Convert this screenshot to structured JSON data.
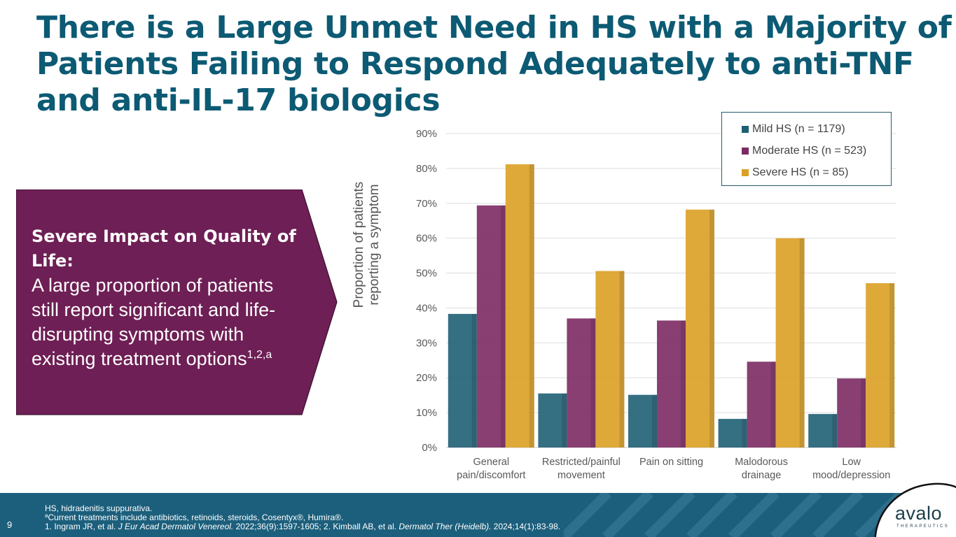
{
  "title": {
    "line1": "There is a Large Unmet Need in HS with a Majority of",
    "line2": "Patients Failing to Respond Adequately to anti-TNF",
    "line3": "and anti-IL-17 biologics"
  },
  "callout": {
    "heading": "Severe Impact on Quality of Life:",
    "body": "A large proportion of patients still report significant and life-disrupting symptoms with existing treatment options",
    "body_superscript": "1,2,a",
    "fill_color": "#6e1f55"
  },
  "chart_data": {
    "type": "bar",
    "ylabel_line1": "Proportion of patients",
    "ylabel_line2": "reporting a symptom",
    "ylim": [
      0,
      90
    ],
    "yticks": [
      0,
      10,
      20,
      30,
      40,
      50,
      60,
      70,
      80,
      90
    ],
    "ytick_labels": [
      "0%",
      "10%",
      "20%",
      "30%",
      "40%",
      "50%",
      "60%",
      "70%",
      "80%",
      "90%"
    ],
    "grid": true,
    "legend_position": "top-right",
    "categories": [
      [
        "General",
        "pain/discomfort"
      ],
      [
        "Restricted/painful",
        "movement"
      ],
      [
        "Pain on sitting"
      ],
      [
        "Malodorous",
        "drainage"
      ],
      [
        "Low",
        "mood/depression"
      ]
    ],
    "series": [
      {
        "name": "Mild HS (n = 1179)",
        "color": "#1f5f74",
        "values": [
          38.3,
          15.5,
          15.1,
          8.2,
          9.6
        ]
      },
      {
        "name": "Moderate HS (n = 523)",
        "color": "#7c2a63",
        "values": [
          69.4,
          37.0,
          36.4,
          24.6,
          19.8
        ]
      },
      {
        "name": "Severe HS (n = 85)",
        "color": "#dba024",
        "values": [
          81.2,
          50.6,
          68.2,
          60.0,
          47.1
        ]
      }
    ]
  },
  "footer": {
    "page_number": "9",
    "line1": "HS, hidradenitis suppurativa.",
    "line2_sup": "a",
    "line2": "Current treatments include antibiotics, retinoids, steroids, Cosentyx®, Humira®.",
    "line3_a": "1. Ingram JR, et al. ",
    "line3_journal1": "J Eur Acad Dermatol Venereol.",
    "line3_b": " 2022;36(9):1597-1605; 2. Kimball AB, et al. ",
    "line3_journal2": "Dermatol Ther (Heidelb).",
    "line3_c": " 2024;14(1):83-98.",
    "background_color": "#1c5f7c"
  },
  "logo": {
    "word": "avalo",
    "subtitle": "THERAPEUTICS",
    "icon": "avalo-swirl-logo"
  }
}
